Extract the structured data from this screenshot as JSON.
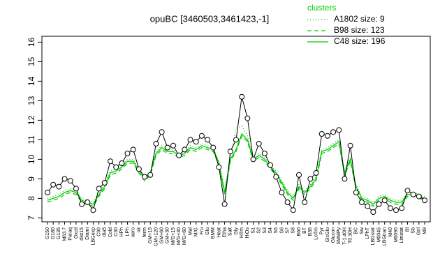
{
  "chart_data": {
    "type": "line",
    "title": "opuBC [3460503,3461423,-1]",
    "legend_title": "clusters",
    "legend_position": "top-right",
    "categories": [
      "G150",
      "G180",
      "G135",
      "M63.7",
      "Paraq",
      "Oxctl",
      "dist15",
      "Diami",
      "LBGexp",
      "C90",
      "dia5",
      "Cold",
      "C30",
      "HPh",
      "LPh",
      "aero",
      "nit",
      "ferm",
      "GM+15",
      "GM+120",
      "GM+60",
      "GM+30",
      "M/G+15",
      "M/G+30",
      "M/G+60",
      "Mal",
      "M/G",
      "Fru",
      "Glu",
      "BMM",
      "Heat",
      "Etha",
      "Salt",
      "Gly",
      "HTm",
      "HiOs",
      "S1",
      "S2",
      "S3",
      "S4",
      "S5",
      "S6",
      "S7",
      "S8",
      "B60",
      "BT",
      "B36",
      "LoTm",
      "Pyr",
      "GlcGlu",
      "Glucon",
      "SMMPy",
      "T-1.40H",
      "T0.30H",
      "BC",
      "Sw",
      "LPhT",
      "LBGstat",
      "M0045",
      "LBGtran",
      "M40",
      "M0090",
      "Limstat",
      "Bl",
      "Sb",
      "Gtrl",
      "M9"
    ],
    "values": [
      8.3,
      8.7,
      8.6,
      9.0,
      8.9,
      8.5,
      7.7,
      7.8,
      7.4,
      8.5,
      8.8,
      9.9,
      9.6,
      9.8,
      10.3,
      10.5,
      9.5,
      9.1,
      9.2,
      10.8,
      11.4,
      10.6,
      10.7,
      10.2,
      10.5,
      11.0,
      10.9,
      11.2,
      11.0,
      10.6,
      9.6,
      7.7,
      10.4,
      11.0,
      13.2,
      12.1,
      10.0,
      10.8,
      10.3,
      9.7,
      9.1,
      8.3,
      7.8,
      7.4,
      9.2,
      7.8,
      9.0,
      9.3,
      11.3,
      11.2,
      11.4,
      11.5,
      9.0,
      10.7,
      8.3,
      7.8,
      7.6,
      7.3,
      7.7,
      7.9,
      7.5,
      7.4,
      7.5,
      8.4,
      8.2,
      8.1,
      7.9
    ],
    "color": "#000000",
    "series": [
      {
        "name": "A1802 size: 9",
        "color": "#00cc00",
        "dash": "dotted",
        "values": [
          8.0,
          8.1,
          8.2,
          8.4,
          8.5,
          8.4,
          8.0,
          7.9,
          7.8,
          8.3,
          8.7,
          9.4,
          9.5,
          9.7,
          10.0,
          10.0,
          9.5,
          9.1,
          9.4,
          10.4,
          10.7,
          10.5,
          10.5,
          10.3,
          10.4,
          10.7,
          10.6,
          10.8,
          10.7,
          10.6,
          9.9,
          8.4,
          10.1,
          11.6,
          11.7,
          11.2,
          10.1,
          10.3,
          10.1,
          9.7,
          9.4,
          8.9,
          8.4,
          8.1,
          8.7,
          8.4,
          8.7,
          9.1,
          10.5,
          10.6,
          10.8,
          11.0,
          9.4,
          10.1,
          8.7,
          8.1,
          8.0,
          7.8,
          8.1,
          8.2,
          8.0,
          7.9,
          7.9,
          8.3,
          8.3,
          8.2,
          8.1
        ]
      },
      {
        "name": "B98 size: 123",
        "color": "#00cc00",
        "dash": "dashed",
        "values": [
          7.8,
          7.9,
          8.0,
          8.2,
          8.3,
          8.2,
          7.8,
          7.7,
          7.6,
          8.1,
          8.5,
          9.2,
          9.3,
          9.5,
          9.8,
          9.8,
          9.3,
          8.9,
          9.2,
          10.2,
          10.5,
          10.3,
          10.3,
          10.1,
          10.2,
          10.5,
          10.4,
          10.6,
          10.5,
          10.4,
          9.7,
          8.2,
          9.9,
          10.4,
          11.2,
          10.9,
          9.9,
          10.1,
          9.9,
          9.5,
          9.2,
          8.7,
          8.2,
          7.9,
          8.5,
          8.2,
          8.5,
          8.9,
          10.3,
          10.4,
          10.6,
          10.8,
          9.2,
          9.9,
          8.5,
          7.9,
          7.8,
          7.6,
          7.9,
          8.0,
          7.8,
          7.7,
          7.7,
          8.1,
          8.1,
          8.0,
          7.9
        ]
      },
      {
        "name": "C48 size: 196",
        "color": "#00cc00",
        "dash": "solid",
        "values": [
          7.9,
          8.0,
          8.1,
          8.3,
          8.4,
          8.3,
          7.9,
          7.8,
          7.7,
          8.2,
          8.6,
          9.3,
          9.4,
          9.6,
          9.9,
          9.9,
          9.4,
          9.0,
          9.3,
          10.3,
          10.6,
          10.4,
          10.4,
          10.2,
          10.3,
          10.6,
          10.5,
          10.7,
          10.6,
          10.5,
          9.8,
          8.3,
          10.0,
          10.5,
          11.3,
          11.0,
          10.0,
          10.2,
          10.0,
          9.6,
          9.3,
          8.8,
          8.3,
          8.0,
          8.6,
          8.3,
          8.6,
          9.0,
          10.4,
          10.5,
          10.7,
          10.9,
          9.3,
          10.0,
          8.6,
          8.0,
          7.9,
          7.7,
          8.0,
          8.1,
          7.9,
          7.8,
          7.8,
          8.2,
          8.2,
          8.1,
          8.0
        ]
      }
    ],
    "ylim": [
      6.8,
      16.3
    ],
    "yticks": [
      7,
      8,
      9,
      10,
      11,
      12,
      13,
      14,
      15,
      16
    ],
    "grid": false
  }
}
